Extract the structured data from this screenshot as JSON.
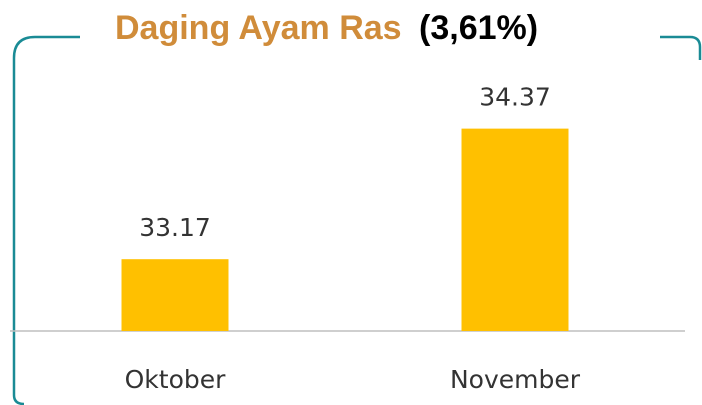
{
  "chart_data": {
    "type": "bar",
    "title": "Daging Ayam Ras",
    "annotation": "(3,61%)",
    "categories": [
      "Oktober",
      "November"
    ],
    "values": [
      33.17,
      34.37
    ],
    "color": "#ffc000",
    "ylim": [
      32.51,
      34.6
    ]
  }
}
